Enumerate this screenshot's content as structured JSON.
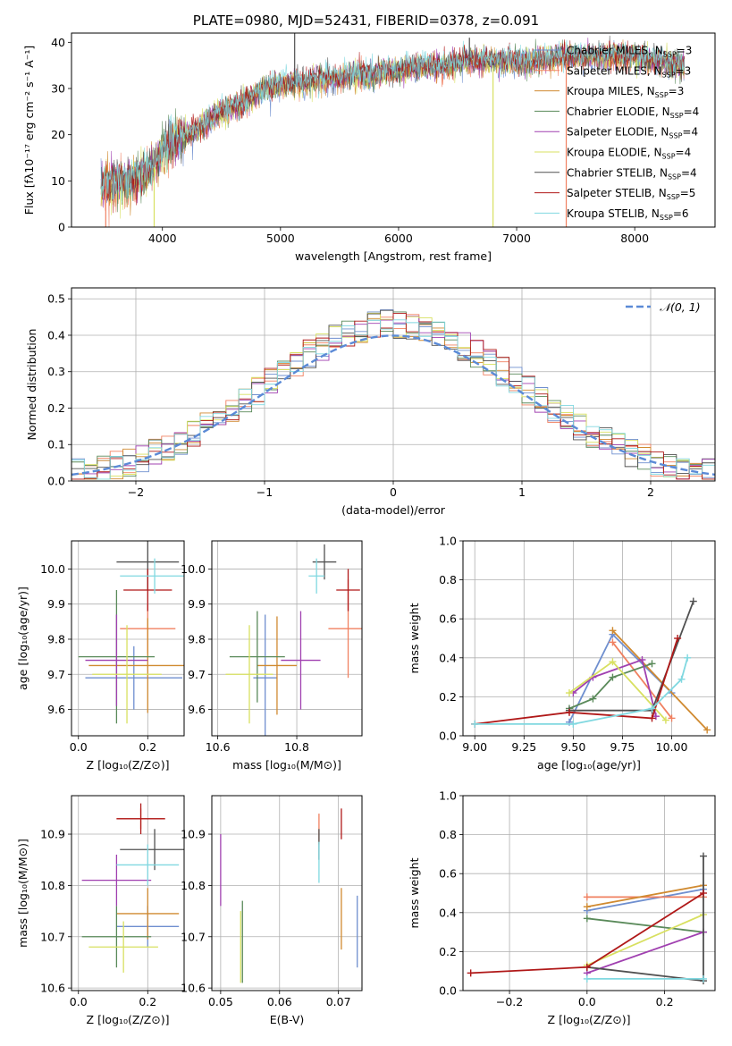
{
  "page_title": "PLATE=0980, MJD=52431, FIBERID=0378, z=0.091",
  "colors": [
    "#6f8fcf",
    "#f08060",
    "#d08a30",
    "#5a8a5a",
    "#a040b0",
    "#d8e060",
    "#505050",
    "#b01818",
    "#80d8e0"
  ],
  "chart_data": [
    {
      "type": "line",
      "title": "PLATE=0980, MJD=52431, FIBERID=0378, z=0.091",
      "xlabel": "wavelength [Angstrom, rest frame]",
      "ylabel": "Flux [fλ10⁻¹⁷ erg cm⁻² s⁻¹ A⁻¹]",
      "xlim": [
        3230,
        8680
      ],
      "ylim": [
        0,
        42
      ],
      "xticks": [
        "4000",
        "5000",
        "6000",
        "7000",
        "8000"
      ],
      "yticks": [
        "0",
        "10",
        "20",
        "30",
        "40"
      ],
      "grid": false,
      "legend_position": "top-right",
      "spectrum_knots": {
        "x": [
          3480,
          3600,
          3700,
          3800,
          3850,
          3920,
          4000,
          4100,
          4200,
          4300,
          4400,
          4500,
          4600,
          4700,
          4800,
          4900,
          5000,
          5100,
          5200,
          5300,
          5400,
          5500,
          5600,
          5700,
          5800,
          5900,
          6000,
          6200,
          6400,
          6600,
          6800,
          7000,
          7200,
          7400,
          7600,
          7800,
          8000,
          8200,
          8420
        ],
        "y": [
          9,
          9.5,
          10,
          11,
          12,
          13,
          17,
          19,
          20,
          21,
          23,
          25,
          26,
          27,
          29,
          30,
          31,
          31,
          31,
          32,
          32,
          32,
          33,
          33,
          33,
          34,
          34,
          35,
          35,
          36,
          36,
          36,
          36,
          37,
          37,
          37,
          37,
          36,
          35
        ]
      },
      "legend": [
        "Chabrier MILES, N_SSP=3",
        "Salpeter MILES, N_SSP=3",
        "Kroupa MILES, N_SSP=3",
        "Chabrier ELODIE, N_SSP=4",
        "Salpeter ELODIE, N_SSP=4",
        "Kroupa ELODIE, N_SSP=4",
        "Chabrier STELIB, N_SSP=4",
        "Salpeter STELIB, N_SSP=5",
        "Kroupa STELIB, N_SSP=6"
      ]
    },
    {
      "type": "histogram",
      "xlabel": "(data-model)/error",
      "ylabel": "Normed distribution",
      "xlim": [
        -2.5,
        2.5
      ],
      "ylim": [
        0,
        0.53
      ],
      "xticks": [
        "−2",
        "−1",
        "0",
        "1",
        "2"
      ],
      "yticks": [
        "0.0",
        "0.1",
        "0.2",
        "0.3",
        "0.4",
        "0.5"
      ],
      "grid": true,
      "legend_position": "top-right",
      "legend_label": "𝒩(0, 1)",
      "bins": [
        -2.5,
        2.5,
        50
      ]
    },
    {
      "type": "errorbar",
      "xlabel": "Z [log₁₀(Z/Z⊙)]",
      "ylabel": "age  [log₁₀(age/yr)]",
      "xlim": [
        -0.02,
        0.305
      ],
      "ylim": [
        9.525,
        10.08
      ],
      "xticks": [
        "0.0",
        "0.2"
      ],
      "yticks": [
        "9.6",
        "9.7",
        "9.8",
        "9.9",
        "10.0"
      ],
      "grid": true,
      "points": [
        {
          "x": 0.16,
          "y": 9.69,
          "xerr": 0.14,
          "yerr": 0.09
        },
        {
          "x": 0.2,
          "y": 9.83,
          "xerr": 0.08,
          "yerr": 0.07
        },
        {
          "x": 0.2,
          "y": 9.725,
          "xerr": 0.17,
          "yerr": 0.135
        },
        {
          "x": 0.11,
          "y": 9.75,
          "xerr": 0.11,
          "yerr": 0.19
        },
        {
          "x": 0.11,
          "y": 9.74,
          "xerr": 0.09,
          "yerr": 0.13
        },
        {
          "x": 0.14,
          "y": 9.7,
          "xerr": 0.1,
          "yerr": 0.14
        },
        {
          "x": 0.2,
          "y": 10.02,
          "xerr": 0.09,
          "yerr": 0.08
        },
        {
          "x": 0.2,
          "y": 9.94,
          "xerr": 0.07,
          "yerr": 0.06
        },
        {
          "x": 0.22,
          "y": 9.98,
          "xerr": 0.1,
          "yerr": 0.05
        }
      ]
    },
    {
      "type": "errorbar",
      "xlabel": "mass [log₁₀(M/M⊙)]",
      "ylabel": "",
      "xlim": [
        10.585,
        10.965
      ],
      "ylim": [
        9.525,
        10.08
      ],
      "xticks": [
        "10.6",
        "10.8"
      ],
      "yticks": [
        "9.6",
        "9.7",
        "9.8",
        "9.9",
        "10.0"
      ],
      "grid": true,
      "points": [
        {
          "x": 10.72,
          "y": 9.69,
          "xerr": 0.03,
          "yerr": 0.18
        },
        {
          "x": 10.93,
          "y": 9.83,
          "xerr": 0.05,
          "yerr": 0.14
        },
        {
          "x": 10.75,
          "y": 9.725,
          "xerr": 0.05,
          "yerr": 0.14
        },
        {
          "x": 10.7,
          "y": 9.75,
          "xerr": 0.07,
          "yerr": 0.13
        },
        {
          "x": 10.81,
          "y": 9.74,
          "xerr": 0.05,
          "yerr": 0.14
        },
        {
          "x": 10.68,
          "y": 9.7,
          "xerr": 0.06,
          "yerr": 0.14
        },
        {
          "x": 10.87,
          "y": 10.02,
          "xerr": 0.03,
          "yerr": 0.05
        },
        {
          "x": 10.93,
          "y": 9.94,
          "xerr": 0.03,
          "yerr": 0.06
        },
        {
          "x": 10.85,
          "y": 9.98,
          "xerr": 0.02,
          "yerr": 0.05
        }
      ]
    },
    {
      "type": "line",
      "xlabel": "age  [log₁₀(age/yr)]",
      "ylabel": "mass weight",
      "xlim": [
        8.94,
        10.22
      ],
      "ylim": [
        0,
        1
      ],
      "xticks": [
        "9.00",
        "9.25",
        "9.50",
        "9.75",
        "10.00"
      ],
      "yticks": [
        "0.0",
        "0.2",
        "0.4",
        "0.6",
        "0.8",
        "1.0"
      ],
      "grid": true,
      "series": [
        {
          "x": [
            9.48,
            9.7,
            10.0
          ],
          "y": [
            0.07,
            0.52,
            0.22
          ]
        },
        {
          "x": [
            9.7,
            10.0
          ],
          "y": [
            0.48,
            0.09
          ]
        },
        {
          "x": [
            9.7,
            10.18
          ],
          "y": [
            0.54,
            0.03
          ]
        },
        {
          "x": [
            9.48,
            9.6,
            9.7,
            9.9
          ],
          "y": [
            0.14,
            0.19,
            0.3,
            0.37
          ]
        },
        {
          "x": [
            9.5,
            9.6,
            9.85,
            9.92
          ],
          "y": [
            0.22,
            0.3,
            0.39,
            0.1
          ]
        },
        {
          "x": [
            9.48,
            9.7,
            9.97
          ],
          "y": [
            0.22,
            0.38,
            0.08
          ]
        },
        {
          "x": [
            9.48,
            9.9,
            10.11
          ],
          "y": [
            0.13,
            0.13,
            0.69
          ]
        },
        {
          "x": [
            9.0,
            9.48,
            9.9,
            10.03
          ],
          "y": [
            0.06,
            0.12,
            0.09,
            0.5
          ]
        },
        {
          "x": [
            9.0,
            9.5,
            9.9,
            10.05,
            10.08
          ],
          "y": [
            0.06,
            0.06,
            0.14,
            0.29,
            0.4
          ]
        }
      ]
    },
    {
      "type": "errorbar",
      "xlabel": "Z [log₁₀(Z/Z⊙)]",
      "ylabel": "mass [log₁₀(M/M⊙)]",
      "xlim": [
        -0.02,
        0.305
      ],
      "ylim": [
        10.595,
        10.975
      ],
      "xticks": [
        "0.0",
        "0.2"
      ],
      "yticks": [
        "10.6",
        "10.7",
        "10.8",
        "10.9"
      ],
      "grid": true,
      "points": [
        {
          "x": 0.2,
          "y": 10.72,
          "xerr": 0.09,
          "yerr": 0.04
        },
        {
          "x": 0.18,
          "y": 10.93,
          "xerr": 0.07,
          "yerr": 0.02
        },
        {
          "x": 0.2,
          "y": 10.745,
          "xerr": 0.09,
          "yerr": 0.05
        },
        {
          "x": 0.11,
          "y": 10.7,
          "xerr": 0.1,
          "yerr": 0.06
        },
        {
          "x": 0.11,
          "y": 10.81,
          "xerr": 0.1,
          "yerr": 0.05
        },
        {
          "x": 0.13,
          "y": 10.68,
          "xerr": 0.1,
          "yerr": 0.05
        },
        {
          "x": 0.22,
          "y": 10.87,
          "xerr": 0.1,
          "yerr": 0.04
        },
        {
          "x": 0.18,
          "y": 10.93,
          "xerr": 0.07,
          "yerr": 0.03
        },
        {
          "x": 0.2,
          "y": 10.84,
          "xerr": 0.09,
          "yerr": 0.04
        }
      ]
    },
    {
      "type": "errorbar",
      "xlabel": "E(B-V)",
      "ylabel": "",
      "xlim": [
        0.0485,
        0.074
      ],
      "ylim": [
        10.595,
        10.975
      ],
      "xticks": [
        "0.05",
        "0.06",
        "0.07"
      ],
      "yticks": [
        "10.6",
        "10.7",
        "10.8",
        "10.9"
      ],
      "grid": true,
      "points": [
        {
          "x": 0.0732,
          "y": 10.71,
          "xerr": 0,
          "yerr": 0.07
        },
        {
          "x": 0.0667,
          "y": 10.91,
          "xerr": 0,
          "yerr": 0.03
        },
        {
          "x": 0.0705,
          "y": 10.735,
          "xerr": 0,
          "yerr": 0.06
        },
        {
          "x": 0.0537,
          "y": 10.69,
          "xerr": 0,
          "yerr": 0.08
        },
        {
          "x": 0.05,
          "y": 10.83,
          "xerr": 0,
          "yerr": 0.07
        },
        {
          "x": 0.0534,
          "y": 10.68,
          "xerr": 0,
          "yerr": 0.07
        },
        {
          "x": 0.0667,
          "y": 10.88,
          "xerr": 0,
          "yerr": 0.03
        },
        {
          "x": 0.0705,
          "y": 10.92,
          "xerr": 0,
          "yerr": 0.03
        },
        {
          "x": 0.0667,
          "y": 10.845,
          "xerr": 0,
          "yerr": 0.04
        }
      ]
    },
    {
      "type": "line",
      "xlabel": "Z [log₁₀(Z/Z⊙)]",
      "ylabel": "mass weight",
      "xlim": [
        -0.32,
        0.33
      ],
      "ylim": [
        0,
        1
      ],
      "xticks": [
        "−0.2",
        "0.0",
        "0.2"
      ],
      "yticks": [
        "0.0",
        "0.2",
        "0.4",
        "0.6",
        "0.8",
        "1.0"
      ],
      "grid": true,
      "series": [
        {
          "x": [
            0.0,
            0.3
          ],
          "y": [
            0.41,
            0.52
          ]
        },
        {
          "x": [
            0.0,
            0.3
          ],
          "y": [
            0.48,
            0.48
          ]
        },
        {
          "x": [
            0.0,
            0.3
          ],
          "y": [
            0.43,
            0.54
          ]
        },
        {
          "x": [
            0.0,
            0.3
          ],
          "y": [
            0.37,
            0.3
          ]
        },
        {
          "x": [
            0.0,
            0.3
          ],
          "y": [
            0.09,
            0.3
          ]
        },
        {
          "x": [
            0.0,
            0.3
          ],
          "y": [
            0.13,
            0.39
          ]
        },
        {
          "x": [
            0.0,
            0.3,
            0.3
          ],
          "y": [
            0.12,
            0.05,
            0.69
          ]
        },
        {
          "x": [
            -0.3,
            0.0,
            0.3
          ],
          "y": [
            0.09,
            0.12,
            0.5
          ]
        },
        {
          "x": [
            0.0,
            0.3
          ],
          "y": [
            0.06,
            0.06
          ]
        }
      ]
    }
  ]
}
